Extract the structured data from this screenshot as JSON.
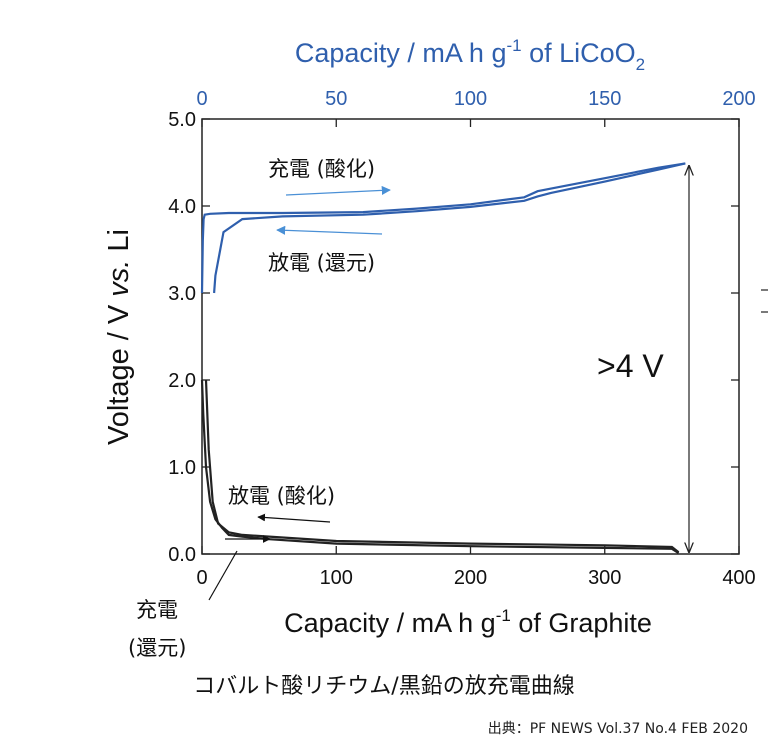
{
  "chart_data": {
    "type": "line",
    "top_axis": {
      "label_main": "Capacity  /  mA h g",
      "label_sup": "-1",
      "label_of": " of LiCoO",
      "label_sub": "2",
      "range": [
        0,
        200
      ],
      "ticks": [
        "0",
        "50",
        "100",
        "150",
        "200"
      ],
      "tick_values": [
        0,
        50,
        100,
        150,
        200
      ],
      "color": "#2f5fad"
    },
    "bottom_axis": {
      "label_main": "Capacity  /  mA h g",
      "label_sup": "-1",
      "label_of": " of Graphite",
      "range": [
        0,
        400
      ],
      "ticks": [
        "0",
        "100",
        "200",
        "300",
        "400"
      ],
      "tick_values": [
        0,
        100,
        200,
        300,
        400
      ]
    },
    "y_axis": {
      "label": "Voltage  /  V vs. Li",
      "label_pre": "Voltage  /  V ",
      "label_italic": "vs.",
      "label_post": " Li",
      "range": [
        0,
        5
      ],
      "ticks": [
        "0.0",
        "1.0",
        "2.0",
        "3.0",
        "4.0",
        "5.0"
      ],
      "tick_values": [
        0,
        1,
        2,
        3,
        4,
        5
      ]
    },
    "series": [
      {
        "name": "LiCoO2 charge",
        "axis": "top",
        "color": "#2f5fad",
        "x": [
          0,
          0.3,
          0.6,
          1,
          3,
          10,
          30,
          60,
          80,
          100,
          120,
          125,
          130,
          150,
          170,
          180
        ],
        "y": [
          3.0,
          3.6,
          3.85,
          3.9,
          3.91,
          3.92,
          3.92,
          3.93,
          3.97,
          4.02,
          4.1,
          4.17,
          4.2,
          4.32,
          4.44,
          4.49
        ]
      },
      {
        "name": "LiCoO2 discharge",
        "axis": "top",
        "color": "#2f5fad",
        "x": [
          180,
          170,
          150,
          130,
          125,
          120,
          100,
          80,
          60,
          30,
          15,
          8,
          5,
          4.5
        ],
        "y": [
          4.49,
          4.42,
          4.28,
          4.15,
          4.11,
          4.06,
          3.99,
          3.94,
          3.9,
          3.88,
          3.85,
          3.7,
          3.2,
          3.0
        ]
      },
      {
        "name": "Graphite charge",
        "axis": "bottom",
        "color": "#222222",
        "x": [
          0,
          1,
          3,
          6,
          10,
          15,
          20,
          30,
          50,
          100,
          200,
          300,
          350,
          355
        ],
        "y": [
          2.0,
          1.6,
          1.0,
          0.6,
          0.4,
          0.3,
          0.22,
          0.2,
          0.17,
          0.12,
          0.09,
          0.07,
          0.06,
          0.01
        ]
      },
      {
        "name": "Graphite discharge",
        "axis": "bottom",
        "color": "#222222",
        "x": [
          355,
          350,
          300,
          200,
          100,
          50,
          30,
          20,
          12,
          8,
          5,
          3
        ],
        "y": [
          0.02,
          0.08,
          0.1,
          0.12,
          0.15,
          0.2,
          0.22,
          0.25,
          0.35,
          0.6,
          1.2,
          2.0
        ]
      }
    ],
    "annotations": {
      "blue_charge": "充電 (酸化)",
      "blue_discharge": "放電 (還元)",
      "black_discharge": "放電 (酸化)",
      "black_charge_line1": "充電",
      "black_charge_line2": "(還元)",
      "voltage_gap": ">4 V"
    }
  },
  "caption": "コバルト酸リチウム/黒鉛の放充電曲線",
  "source": "出典：PF NEWS Vol.37 No.4 FEB 2020"
}
